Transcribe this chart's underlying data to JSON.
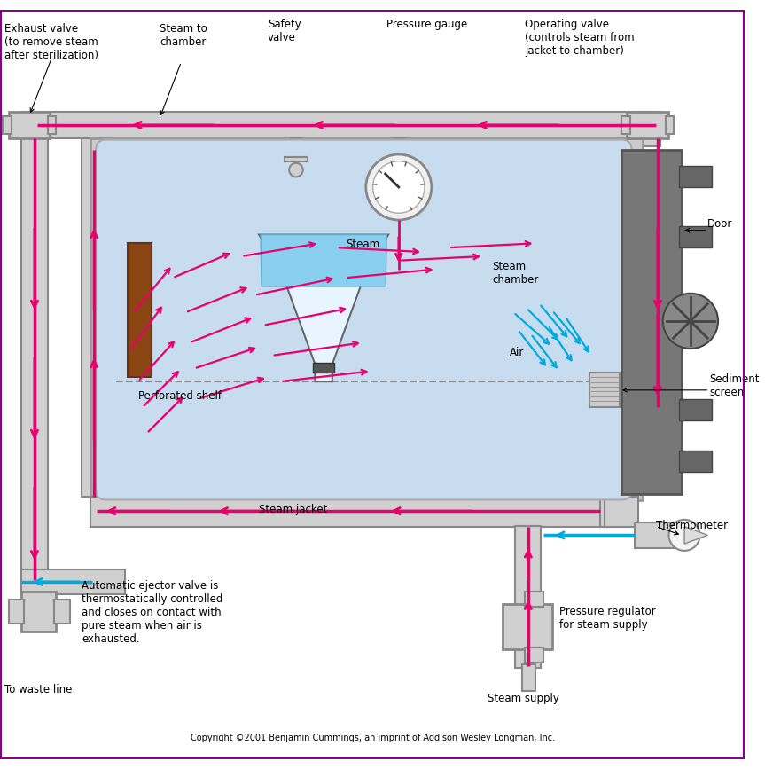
{
  "border_color": "#8B008B",
  "bg_color": "#FFFFFF",
  "chamber_fill": "#C8DCEF",
  "magenta": "#E8006E",
  "cyan_air": "#00AADD",
  "pipe_light": "#D0D0D0",
  "pipe_dark": "#888888",
  "dark_gray": "#666666",
  "text_color": "#000000",
  "copyright": "Copyright ©2001 Benjamin Cummings, an imprint of Addison Wesley Longman, Inc.",
  "labels": {
    "exhaust_valve": "Exhaust valve\n(to remove steam\nafter sterilization)",
    "steam_to_chamber": "Steam to\nchamber",
    "safety_valve": "Safety\nvalve",
    "pressure_gauge": "Pressure gauge",
    "operating_valve": "Operating valve\n(controls steam from\njacket to chamber)",
    "door": "Door",
    "steam_chamber": "Steam\nchamber",
    "steam": "Steam",
    "air": "Air",
    "perforated_shelf": "Perforated shelf",
    "sediment_screen": "Sediment\nscreen",
    "thermometer": "Thermometer",
    "steam_jacket": "Steam jacket",
    "pressure_regulator": "Pressure regulator\nfor steam supply",
    "steam_supply": "Steam supply",
    "ejector_valve": "Automatic ejector valve is\nthermostatically controlled\nand closes on contact with\npure steam when air is\nexhausted.",
    "waste_line": "To waste line"
  }
}
